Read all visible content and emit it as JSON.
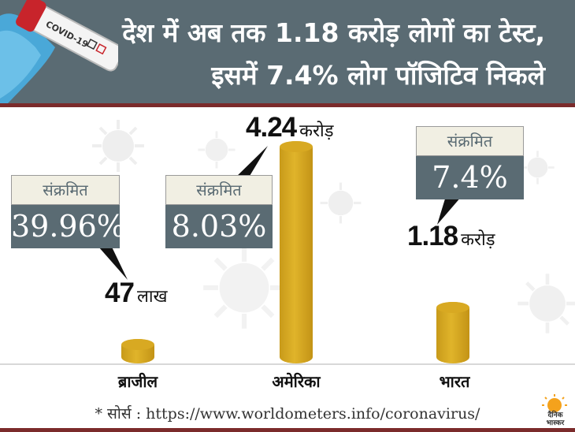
{
  "header": {
    "title_line1": "देश में अब तक 1.18 करोड़ लोगों का टेस्ट,",
    "title_line2": "इसमें 7.4% लोग पॉजिटिव निकले",
    "test_tube_label": "COVID-19"
  },
  "chart_data": {
    "type": "bar",
    "categories": [
      "ब्राजील",
      "अमेरिका",
      "भारत"
    ],
    "values": [
      0.47,
      4.24,
      1.18
    ],
    "value_unit_crore": true,
    "bar_labels": [
      {
        "number": "47",
        "unit": "लाख"
      },
      {
        "number": "4.24",
        "unit": "करोड़"
      },
      {
        "number": "1.18",
        "unit": "करोड़"
      }
    ],
    "callouts": [
      {
        "label": "संक्रमित",
        "value": "39.96%"
      },
      {
        "label": "संक्रमित",
        "value": "8.03%"
      },
      {
        "label": "संक्रमित",
        "value": "7.4%"
      }
    ],
    "ylim": [
      0,
      4.24
    ]
  },
  "footer": {
    "source": "* सोर्स : https://www.worldometers.info/coronavirus/",
    "logo_text": "दैनिक भास्कर"
  },
  "colors": {
    "header_bg": "#5a6b73",
    "accent_red": "#7b2b2b",
    "bar_gold": "#d8a922",
    "callout_label_bg": "#f1efe3",
    "callout_value_bg": "#5a6b73"
  }
}
